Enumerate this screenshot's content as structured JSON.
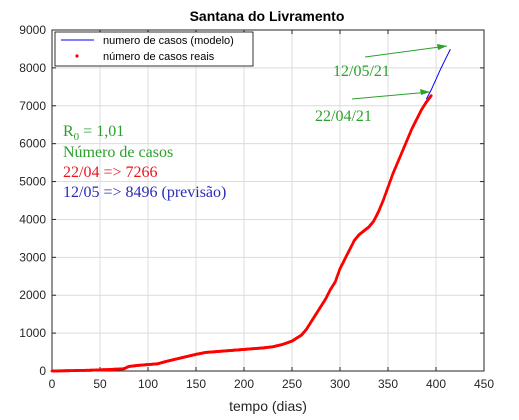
{
  "chart_data": {
    "type": "line",
    "title": "Santana do Livramento",
    "xlabel": "tempo (dias)",
    "ylabel": "",
    "xlim": [
      0,
      450
    ],
    "ylim": [
      0,
      9000
    ],
    "xticks": [
      "0",
      "50",
      "100",
      "150",
      "200",
      "250",
      "300",
      "350",
      "400",
      "450"
    ],
    "yticks": [
      "0",
      "1000",
      "2000",
      "3000",
      "4000",
      "5000",
      "6000",
      "7000",
      "8000",
      "9000"
    ],
    "grid": true,
    "legend_position": "top-left",
    "series": [
      {
        "name": "numero de casos (modelo)",
        "color": "#0000ff",
        "style": "line",
        "x": [
          390,
          395,
          400,
          405,
          410,
          415
        ],
        "y": [
          7180,
          7420,
          7700,
          7980,
          8240,
          8496
        ]
      },
      {
        "name": "número de casos reais",
        "color": "#ff0000",
        "style": "markers",
        "x": [
          0,
          20,
          40,
          60,
          75,
          80,
          90,
          100,
          110,
          120,
          130,
          140,
          150,
          160,
          170,
          180,
          190,
          200,
          210,
          220,
          230,
          240,
          250,
          255,
          260,
          265,
          270,
          275,
          280,
          285,
          290,
          295,
          300,
          305,
          310,
          315,
          320,
          325,
          330,
          335,
          340,
          345,
          350,
          355,
          360,
          365,
          370,
          375,
          380,
          385,
          390,
          395
        ],
        "y": [
          0,
          10,
          20,
          40,
          60,
          120,
          150,
          170,
          190,
          260,
          320,
          380,
          440,
          490,
          510,
          530,
          550,
          570,
          590,
          610,
          640,
          700,
          790,
          870,
          950,
          1100,
          1300,
          1500,
          1700,
          1900,
          2150,
          2350,
          2700,
          2950,
          3200,
          3450,
          3600,
          3700,
          3800,
          3950,
          4200,
          4500,
          4850,
          5200,
          5500,
          5800,
          6100,
          6400,
          6650,
          6900,
          7100,
          7266
        ]
      }
    ],
    "annotations": [
      {
        "text": "12/05/21",
        "color": "#2ca02c",
        "arrow_to": [
          415,
          8496
        ]
      },
      {
        "text": "22/04/21",
        "color": "#2ca02c",
        "arrow_to": [
          395,
          7266
        ]
      }
    ]
  },
  "info_box": {
    "r0_label": "R",
    "r0_sub": "0",
    "r0_value": " = 1,01",
    "cases_label": "Número de casos",
    "line_actual": "22/04 => 7266",
    "line_forecast": "12/05 => 8496 (previsão)",
    "colors": {
      "green": "#2ca02c",
      "red": "#e8141a",
      "blue": "#2a2ab8"
    }
  }
}
